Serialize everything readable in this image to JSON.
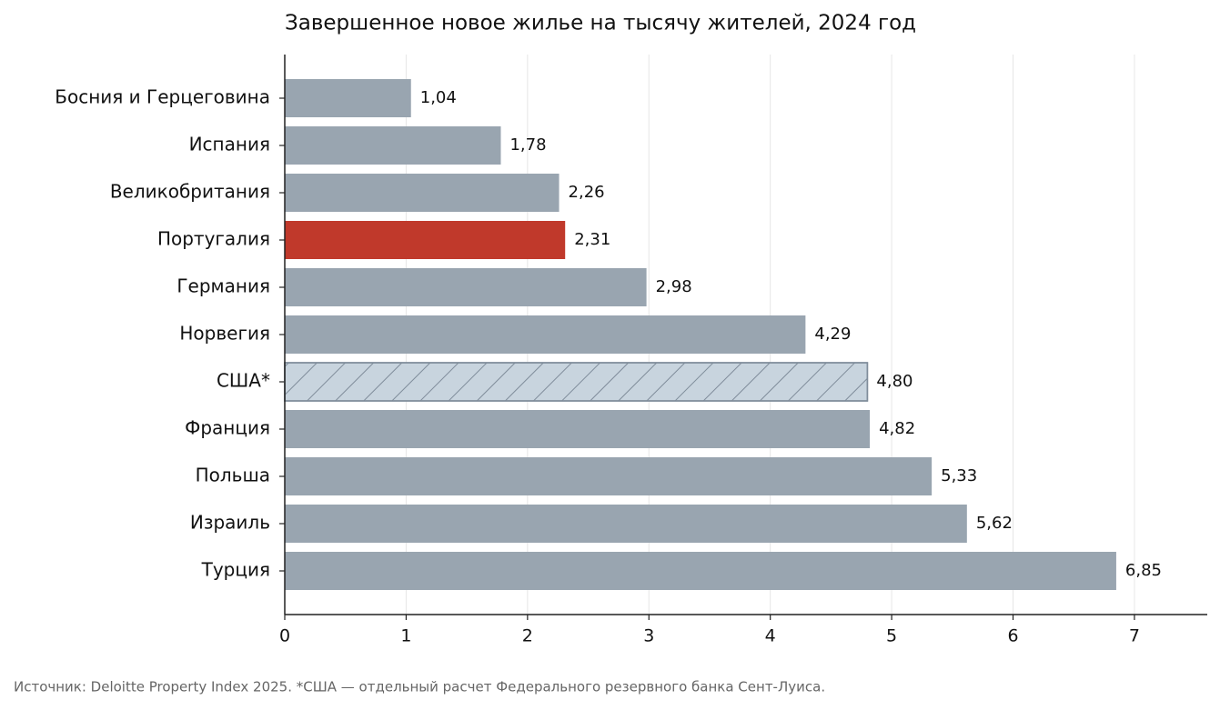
{
  "chart_data": {
    "type": "bar",
    "orientation": "horizontal",
    "title": "Завершенное новое жилье на тысячу жителей, 2024 год",
    "categories": [
      "Босния и Герцеговина",
      "Испания",
      "Великобритания",
      "Португалия",
      "Германия",
      "Норвегия",
      "США*",
      "Франция",
      "Польша",
      "Израиль",
      "Турция"
    ],
    "values": [
      1.04,
      1.78,
      2.26,
      2.31,
      2.98,
      4.29,
      4.8,
      4.82,
      5.33,
      5.62,
      6.85
    ],
    "value_labels": [
      "1,04",
      "1,78",
      "2,26",
      "2,31",
      "2,98",
      "4,29",
      "4,80",
      "4,82",
      "5,33",
      "5,62",
      "6,85"
    ],
    "colors": [
      "#99a5b0",
      "#99a5b0",
      "#99a5b0",
      "#c0392b",
      "#99a5b0",
      "#99a5b0",
      "#c8d4de",
      "#99a5b0",
      "#99a5b0",
      "#99a5b0",
      "#99a5b0"
    ],
    "patterns": [
      "solid",
      "solid",
      "solid",
      "solid",
      "solid",
      "solid",
      "hatch",
      "solid",
      "solid",
      "solid",
      "solid"
    ],
    "xlim": [
      0,
      7.6
    ],
    "xticks": [
      0,
      1,
      2,
      3,
      4,
      5,
      6,
      7
    ],
    "grid": true,
    "source": "Источник: Deloitte Property Index 2025. *США — отдельный расчет Федерального резервного банка Сент-Луиса."
  }
}
